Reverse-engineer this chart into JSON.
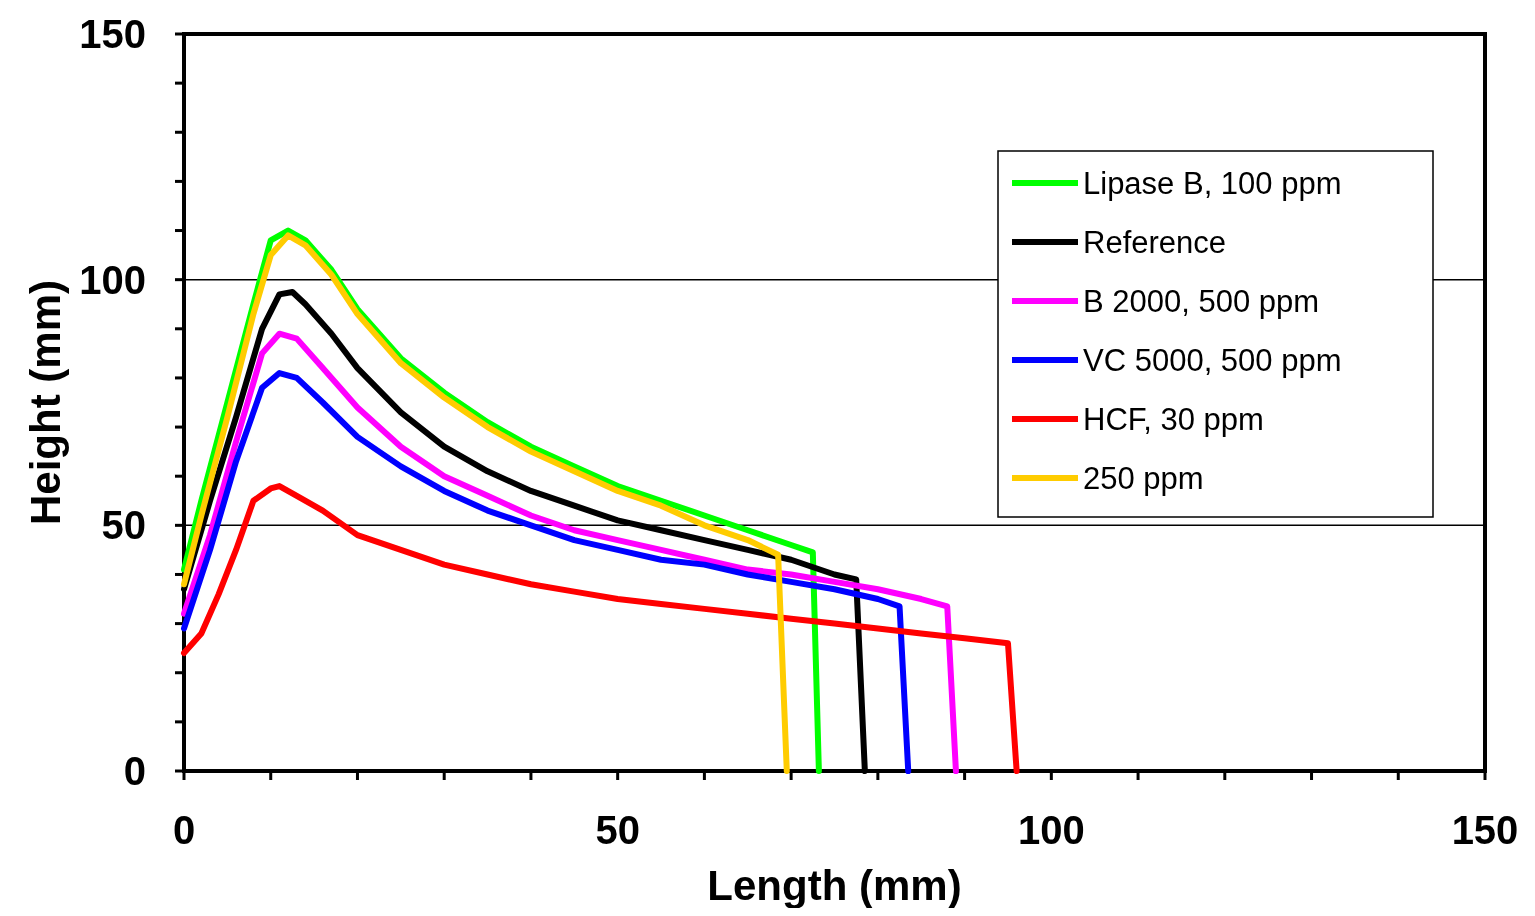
{
  "chart_data": {
    "type": "line",
    "xlabel": "Length (mm)",
    "ylabel": "Height (mm)",
    "xlim": [
      0,
      150
    ],
    "ylim": [
      0,
      150
    ],
    "xticks": [
      0,
      {
        "value": 10,
        "label": null
      },
      {
        "value": 20,
        "label": null
      },
      {
        "value": 30,
        "label": null
      },
      {
        "value": 40,
        "label": null
      },
      50,
      {
        "value": 60,
        "label": null
      },
      {
        "value": 70,
        "label": null
      },
      {
        "value": 80,
        "label": null
      },
      {
        "value": 90,
        "label": null
      },
      100,
      {
        "value": 110,
        "label": null
      },
      {
        "value": 120,
        "label": null
      },
      {
        "value": 130,
        "label": null
      },
      {
        "value": 140,
        "label": null
      },
      150
    ],
    "yticks": [
      0,
      {
        "value": 10,
        "label": null
      },
      {
        "value": 20,
        "label": null
      },
      {
        "value": 30,
        "label": null
      },
      {
        "value": 40,
        "label": null
      },
      50,
      {
        "value": 60,
        "label": null
      },
      {
        "value": 70,
        "label": null
      },
      {
        "value": 80,
        "label": null
      },
      {
        "value": 90,
        "label": null
      },
      100,
      {
        "value": 110,
        "label": null
      },
      {
        "value": 120,
        "label": null
      },
      {
        "value": 130,
        "label": null
      },
      {
        "value": 140,
        "label": null
      },
      150
    ],
    "grid": "y",
    "legend": "top right",
    "marker": "none",
    "line_style": "solid",
    "series": [
      {
        "name": "Lipase B, 100 ppm",
        "color": "#00ff00",
        "x": [
          0,
          2,
          5,
          8,
          10,
          12,
          14,
          17,
          20,
          25,
          30,
          35,
          40,
          45,
          50,
          55,
          60,
          65,
          70,
          72.5,
          73.2
        ],
        "values": [
          41,
          55,
          75,
          95,
          108,
          110,
          108,
          102,
          94,
          84,
          77,
          71,
          66,
          62,
          58,
          55,
          52,
          49,
          46,
          44.5,
          0
        ]
      },
      {
        "name": "Reference",
        "color": "#000000",
        "x": [
          0,
          3,
          6,
          9,
          11,
          12.5,
          14,
          17,
          20,
          25,
          30,
          35,
          40,
          45,
          50,
          55,
          60,
          65,
          70,
          75,
          77.5,
          78.5
        ],
        "values": [
          37,
          55,
          72,
          90,
          97,
          97.5,
          95,
          89,
          82,
          73,
          66,
          61,
          57,
          54,
          51,
          49,
          47,
          45,
          43,
          40,
          39,
          0
        ]
      },
      {
        "name": "B 2000, 500 ppm",
        "color": "#ff00ff",
        "x": [
          0,
          3,
          6,
          9,
          11,
          13,
          16,
          20,
          25,
          30,
          35,
          40,
          45,
          50,
          55,
          60,
          65,
          70,
          75,
          80,
          85,
          88,
          89
        ],
        "values": [
          32,
          48,
          67,
          85,
          89,
          88,
          82,
          74,
          66,
          60,
          56,
          52,
          49,
          47,
          45,
          43,
          41,
          40,
          38.5,
          37,
          35,
          33.5,
          0
        ]
      },
      {
        "name": "VC 5000, 500 ppm",
        "color": "#0000ff",
        "x": [
          0,
          3,
          6,
          9,
          11,
          13,
          16,
          20,
          25,
          30,
          35,
          40,
          45,
          50,
          55,
          60,
          65,
          70,
          75,
          80,
          82.5,
          83.5
        ],
        "values": [
          29,
          45,
          63,
          78,
          81,
          80,
          75,
          68,
          62,
          57,
          53,
          50,
          47,
          45,
          43,
          42,
          40,
          38.5,
          37,
          35,
          33.5,
          0
        ]
      },
      {
        "name": "HCF, 30 ppm",
        "color": "#ff0000",
        "x": [
          0,
          2,
          4,
          6,
          8,
          10,
          11,
          13,
          16,
          20,
          25,
          30,
          35,
          40,
          45,
          50,
          55,
          60,
          65,
          70,
          75,
          80,
          85,
          90,
          95,
          96
        ],
        "values": [
          24,
          28,
          36,
          45,
          55,
          57.5,
          58,
          56,
          53,
          48,
          45,
          42,
          40,
          38,
          36.5,
          35,
          34,
          33,
          32,
          31,
          30,
          29,
          28,
          27,
          26,
          0
        ]
      },
      {
        "name": "250 ppm",
        "color": "#ffcc00",
        "x": [
          0,
          2,
          5,
          8,
          10,
          12,
          14,
          17,
          20,
          25,
          30,
          35,
          40,
          45,
          50,
          55,
          60,
          65,
          68.5,
          69.5
        ],
        "values": [
          38,
          52,
          72,
          93,
          105,
          109,
          107,
          101,
          93,
          83,
          76,
          70,
          65,
          61,
          57,
          54,
          50,
          47,
          44,
          0
        ]
      }
    ]
  }
}
